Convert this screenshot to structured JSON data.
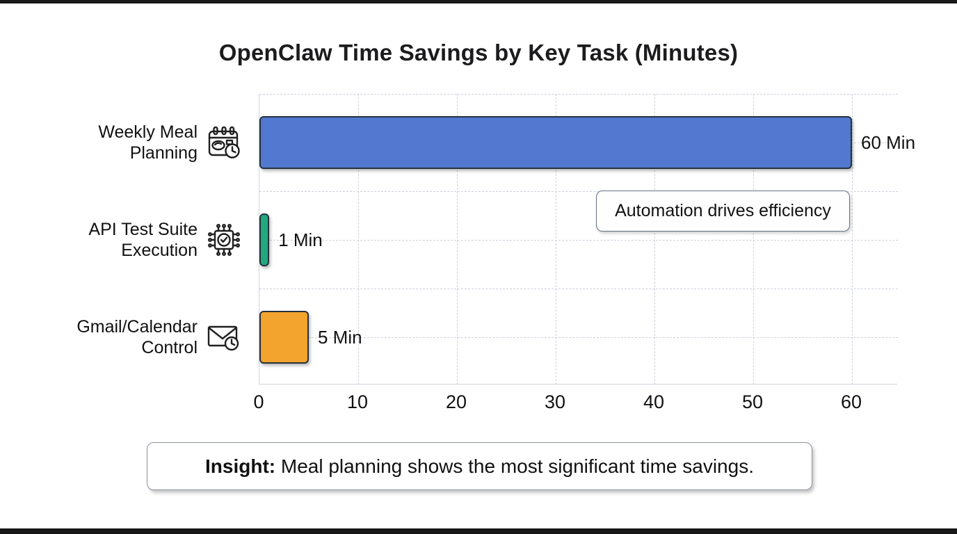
{
  "title": "OpenClaw Time Savings by Key Task (Minutes)",
  "chart_data": {
    "type": "bar",
    "orientation": "horizontal",
    "title": "OpenClaw Time Savings by Key Task (Minutes)",
    "categories": [
      "Weekly Meal Planning",
      "API Test Suite Execution",
      "Gmail/Calendar Control"
    ],
    "values": [
      60,
      1,
      5
    ],
    "value_unit": "Min",
    "xlabel": "",
    "ylabel": "",
    "xlim": [
      0,
      64.6
    ],
    "x_ticks": [
      "0",
      "10",
      "20",
      "30",
      "40",
      "50",
      "60"
    ],
    "grid": "dashed",
    "legend": "none",
    "annotation": "Automation drives efficiency",
    "bar_border_color": "#26313F",
    "rows": [
      {
        "label_line1": "Weekly Meal",
        "label_line2": "Planning",
        "icon": "meal-calendar-icon",
        "value": 60,
        "value_label": "60 Min",
        "color": "#5279CF"
      },
      {
        "label_line1": "API Test Suite",
        "label_line2": "Execution",
        "icon": "chip-check-icon",
        "value": 1,
        "value_label": "1 Min",
        "color": "#21A87D"
      },
      {
        "label_line1": "Gmail/Calendar",
        "label_line2": "Control",
        "icon": "mail-clock-icon",
        "value": 5,
        "value_label": "5 Min",
        "color": "#F2A42E"
      }
    ],
    "insight": {
      "prefix": "Insight:",
      "text": " Meal planning shows the most significant time savings."
    }
  }
}
